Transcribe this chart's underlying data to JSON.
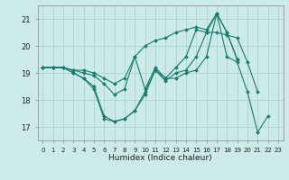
{
  "xlabel": "Humidex (Indice chaleur)",
  "background_color": "#cceae7",
  "grid_color": "#aad4d0",
  "line_color": "#1a7a6e",
  "x_values": [
    0,
    1,
    2,
    3,
    4,
    5,
    6,
    7,
    8,
    9,
    10,
    11,
    12,
    13,
    14,
    15,
    16,
    17,
    18,
    19,
    20,
    21,
    22,
    23
  ],
  "series": [
    [
      19.2,
      19.2,
      19.2,
      19.0,
      18.8,
      18.5,
      17.4,
      17.2,
      17.3,
      17.6,
      18.3,
      19.1,
      18.8,
      18.8,
      19.0,
      19.1,
      19.6,
      21.2,
      19.6,
      19.4,
      18.3,
      16.8,
      17.4,
      null
    ],
    [
      19.2,
      19.2,
      19.2,
      19.0,
      18.8,
      18.4,
      17.3,
      17.2,
      17.3,
      17.6,
      18.2,
      19.1,
      18.7,
      19.0,
      19.1,
      19.6,
      20.5,
      20.5,
      20.4,
      20.3,
      19.4,
      18.3,
      null,
      null
    ],
    [
      19.2,
      19.2,
      19.2,
      19.1,
      19.0,
      18.9,
      18.6,
      18.2,
      18.4,
      19.6,
      18.4,
      19.2,
      18.8,
      19.2,
      19.6,
      20.6,
      20.5,
      21.2,
      20.5,
      19.5,
      null,
      null,
      null,
      null
    ],
    [
      19.2,
      19.2,
      19.2,
      19.1,
      19.1,
      19.0,
      18.8,
      18.6,
      18.8,
      19.6,
      20.0,
      20.2,
      20.3,
      20.5,
      20.6,
      20.7,
      20.6,
      21.2,
      20.5,
      19.5,
      null,
      null,
      null,
      null
    ]
  ],
  "ylim": [
    16.5,
    21.5
  ],
  "yticks": [
    17,
    18,
    19,
    20,
    21
  ],
  "xticks": [
    0,
    1,
    2,
    3,
    4,
    5,
    6,
    7,
    8,
    9,
    10,
    11,
    12,
    13,
    14,
    15,
    16,
    17,
    18,
    19,
    20,
    21,
    22,
    23
  ]
}
